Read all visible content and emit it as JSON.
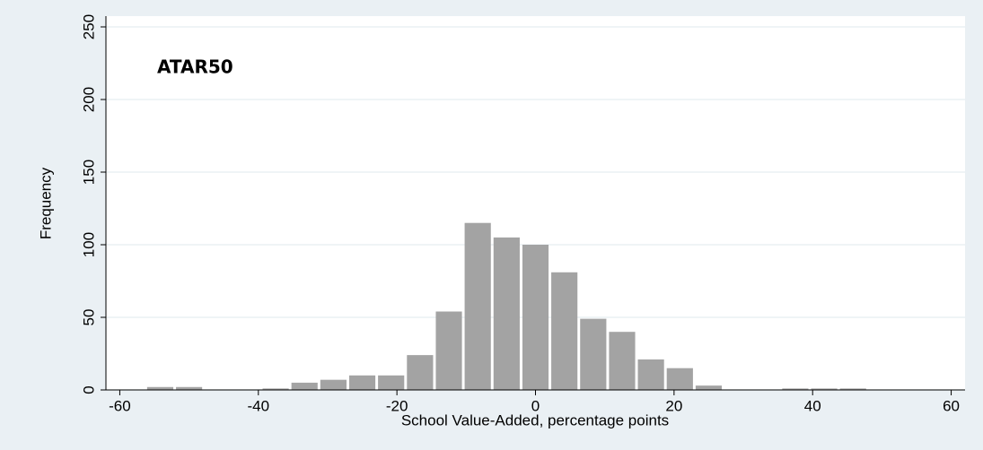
{
  "chart_data": {
    "type": "histogram",
    "annotation": "ATAR50",
    "xlabel": "School Value-Added, percentage points",
    "ylabel": "Frequency",
    "bins": [
      -56.25,
      -52.08,
      -47.92,
      -43.75,
      -39.58,
      -35.42,
      -31.25,
      -27.08,
      -22.92,
      -18.75,
      -14.58,
      -10.42,
      -6.25,
      -2.08,
      2.08,
      6.25,
      10.42,
      14.58,
      18.75,
      22.92,
      27.08,
      31.25,
      35.42,
      39.58,
      43.75,
      47.92
    ],
    "values": [
      2,
      2,
      0,
      0,
      1,
      5,
      7,
      10,
      10,
      24,
      54,
      115,
      105,
      100,
      81,
      49,
      40,
      21,
      15,
      3,
      0,
      0,
      1,
      1,
      1
    ],
    "color": "#a3a3a3",
    "xlim": [
      -62,
      62
    ],
    "xticks": [
      -60,
      -40,
      -20,
      0,
      20,
      40,
      60
    ],
    "ylim": [
      0,
      250
    ],
    "yticks": [
      0,
      50,
      100,
      150,
      200,
      250
    ],
    "grid": true
  }
}
